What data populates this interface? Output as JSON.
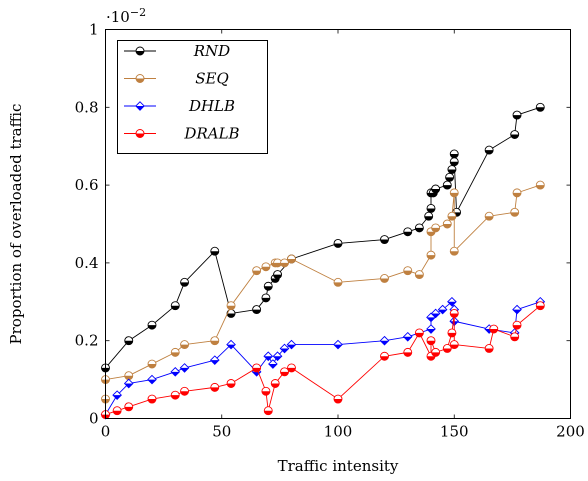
{
  "chart_data": {
    "type": "line",
    "title": "",
    "xlabel": "Traffic intensity",
    "ylabel": "Proportion of overloaded traffic",
    "scale_note": "·10",
    "scale_note_exp": "−2",
    "xlim": [
      0,
      200
    ],
    "ylim": [
      0,
      1
    ],
    "xticks": [
      0,
      50,
      100,
      150,
      200
    ],
    "yticks": [
      0,
      0.2,
      0.4,
      0.6,
      0.8,
      1
    ],
    "xtick_labels": [
      "0",
      "50",
      "100",
      "150",
      "200"
    ],
    "ytick_labels": [
      "0",
      "0.2",
      "0.4",
      "0.6",
      "0.8",
      "1"
    ],
    "grid": false,
    "legend_position": "top-left",
    "series": [
      {
        "name": "RND",
        "color": "#000000",
        "marker": "half-filled-circle",
        "x": [
          0,
          10,
          20,
          30,
          34,
          47,
          54,
          65,
          69,
          70,
          73,
          74,
          80,
          100,
          120,
          130,
          135,
          139,
          140,
          140,
          141,
          142,
          147,
          148,
          149,
          150,
          150,
          151,
          165,
          176,
          177,
          187
        ],
        "y": [
          0.13,
          0.2,
          0.24,
          0.29,
          0.35,
          0.43,
          0.27,
          0.28,
          0.31,
          0.34,
          0.36,
          0.37,
          0.41,
          0.45,
          0.46,
          0.48,
          0.49,
          0.52,
          0.54,
          0.58,
          0.58,
          0.59,
          0.6,
          0.62,
          0.64,
          0.68,
          0.66,
          0.53,
          0.69,
          0.73,
          0.78,
          0.8
        ]
      },
      {
        "name": "SEQ",
        "color": "#bf8040",
        "marker": "half-filled-circle",
        "x": [
          0,
          0,
          10,
          20,
          30,
          34,
          47,
          54,
          65,
          69,
          73,
          74,
          77,
          80,
          100,
          120,
          130,
          135,
          140,
          140,
          142,
          147,
          149,
          150,
          150,
          165,
          176,
          177,
          187
        ],
        "y": [
          0.05,
          0.1,
          0.11,
          0.14,
          0.17,
          0.19,
          0.2,
          0.29,
          0.38,
          0.39,
          0.4,
          0.4,
          0.4,
          0.41,
          0.35,
          0.36,
          0.38,
          0.37,
          0.42,
          0.48,
          0.49,
          0.5,
          0.52,
          0.58,
          0.43,
          0.52,
          0.53,
          0.58,
          0.6
        ]
      },
      {
        "name": "DHLB",
        "color": "#0000ff",
        "marker": "half-filled-diamond",
        "x": [
          0,
          5,
          10,
          20,
          30,
          34,
          47,
          54,
          65,
          70,
          72,
          74,
          77,
          80,
          100,
          120,
          130,
          140,
          140,
          142,
          145,
          149,
          150,
          150,
          165,
          176,
          177,
          187
        ],
        "y": [
          0.01,
          0.06,
          0.09,
          0.1,
          0.12,
          0.13,
          0.15,
          0.19,
          0.12,
          0.16,
          0.14,
          0.16,
          0.18,
          0.19,
          0.19,
          0.2,
          0.21,
          0.23,
          0.26,
          0.27,
          0.28,
          0.3,
          0.28,
          0.25,
          0.23,
          0.22,
          0.28,
          0.3
        ]
      },
      {
        "name": "DRALB",
        "color": "#ff0000",
        "marker": "half-filled-circle",
        "x": [
          0,
          5,
          10,
          20,
          30,
          34,
          47,
          54,
          65,
          69,
          70,
          73,
          77,
          80,
          100,
          120,
          130,
          135,
          140,
          140,
          142,
          147,
          149,
          150,
          150,
          165,
          167,
          176,
          177,
          187
        ],
        "y": [
          0.01,
          0.02,
          0.03,
          0.05,
          0.06,
          0.07,
          0.08,
          0.09,
          0.13,
          0.07,
          0.02,
          0.09,
          0.12,
          0.13,
          0.05,
          0.16,
          0.17,
          0.22,
          0.16,
          0.2,
          0.17,
          0.18,
          0.22,
          0.27,
          0.19,
          0.18,
          0.23,
          0.21,
          0.24,
          0.29
        ]
      }
    ]
  }
}
